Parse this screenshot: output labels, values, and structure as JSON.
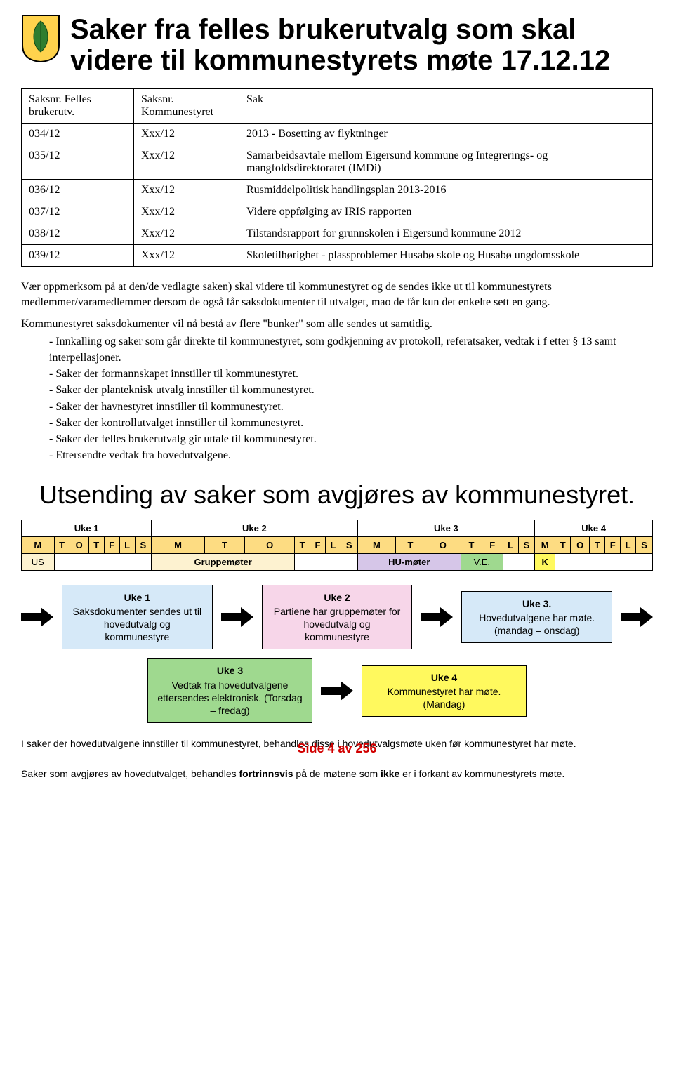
{
  "page_title": "Saker fra felles brukerutvalg som skal videre til kommunestyrets møte 17.12.12",
  "table": {
    "columns": [
      "Saksnr.\nFelles brukerutv.",
      "Saksnr.\nKommunestyret",
      "Sak"
    ],
    "rows": [
      [
        "034/12",
        "Xxx/12",
        "2013 - Bosetting av flyktninger"
      ],
      [
        "035/12",
        "Xxx/12",
        "Samarbeidsavtale mellom Eigersund kommune og Integrerings- og mangfoldsdirektoratet (IMDi)"
      ],
      [
        "036/12",
        "Xxx/12",
        "Rusmiddelpolitisk handlingsplan 2013-2016"
      ],
      [
        "037/12",
        "Xxx/12",
        "Videre oppfølging av IRIS rapporten"
      ],
      [
        "038/12",
        "Xxx/12",
        "Tilstandsrapport for grunnskolen i Eigersund kommune 2012"
      ],
      [
        "039/12",
        "Xxx/12",
        "Skoletilhørighet - plassproblemer Husabø skole og Husabø ungdomsskole"
      ]
    ]
  },
  "para1": "Vær oppmerksom på at den/de vedlagte saken) skal videre til kommunestyret og de sendes ikke ut til kommunestyrets medlemmer/varamedlemmer dersom de også får saksdokumenter til utvalget, mao de får kun det enkelte sett en gang.",
  "para2": "Kommunestyret saksdokumenter vil nå bestå av flere \"bunker\" som alle sendes ut samtidig.",
  "bullets": [
    "Innkalling og saker som går direkte til kommunestyret, som godkjenning av protokoll, referatsaker, vedtak i f etter § 13 samt interpellasjoner.",
    "Saker der formannskapet innstiller til kommunestyret.",
    "Saker der planteknisk utvalg innstiller til kommunestyret.",
    "Saker der havnestyret innstiller til kommunestyret.",
    "Saker der kontrollutvalget innstiller til kommunestyret.",
    "Saker der felles brukerutvalg gir uttale til kommunestyret.",
    "Ettersendte vedtak fra hovedutvalgene."
  ],
  "subhead": "Utsending av saker som avgjøres av kommunestyret.",
  "weeks": {
    "headers": [
      "Uke 1",
      "Uke 2",
      "Uke 3",
      "Uke 4"
    ],
    "days": [
      "M",
      "T",
      "O",
      "T",
      "F",
      "L",
      "S"
    ],
    "day_bg_colors": {
      "default": "#fddc82",
      "weekend": "#fddc82"
    },
    "row3": [
      {
        "span": 1,
        "text": "US",
        "bg": "#fdf2d0"
      },
      {
        "span": 6,
        "text": "",
        "bg": "#ffffff"
      },
      {
        "span": 3,
        "text": "Gruppemøter",
        "bg": "#fdf2d0",
        "bold": true
      },
      {
        "span": 4,
        "text": "",
        "bg": "#ffffff"
      },
      {
        "span": 3,
        "text": "HU-møter",
        "bg": "#d6c6e8",
        "bold": true
      },
      {
        "span": 2,
        "text": "V.E.",
        "bg": "#9fd98f"
      },
      {
        "span": 2,
        "text": "",
        "bg": "#ffffff"
      },
      {
        "span": 1,
        "text": "K",
        "bg": "#fff95e",
        "bold": true
      },
      {
        "span": 6,
        "text": "",
        "bg": "#ffffff"
      }
    ]
  },
  "flow": {
    "boxes": [
      {
        "uke": "Uke 1",
        "text": "Saksdokumenter sendes ut til hovedutvalg og kommunestyre",
        "bg": "#d6e9f8"
      },
      {
        "uke": "Uke 2",
        "text": "Partiene har gruppemøter for hovedutvalg og kommunestyre",
        "bg": "#f7d6e9"
      },
      {
        "uke": "Uke 3.",
        "text": "Hovedutvalgene har møte. (mandag – onsdag)",
        "bg": "#d6e9f8"
      }
    ],
    "boxes2": [
      {
        "uke": "Uke 3",
        "text": "Vedtak fra hovedutvalgene ettersendes elektronisk. (Torsdag – fredag)",
        "bg": "#9fd98f"
      },
      {
        "uke": "Uke 4",
        "text": "Kommunestyret har møte. (Mandag)",
        "bg": "#fff95e"
      }
    ],
    "arrow_color": "#000000"
  },
  "foot1": "I saker der hovedutvalgene innstiller til kommunestyret, behandles disse i hovedutvalgsmøte uken før kommunestyret har møte.",
  "foot2_pre": "Saker som avgjøres av hovedutvalget, behandles ",
  "foot2_bold1": "fortrinnsvis",
  "foot2_mid": " på de møtene som ",
  "foot2_bold2": "ikke",
  "foot2_post": " er i forkant av kommunestyrets møte.",
  "page_stamp": "Side 4 av 256"
}
